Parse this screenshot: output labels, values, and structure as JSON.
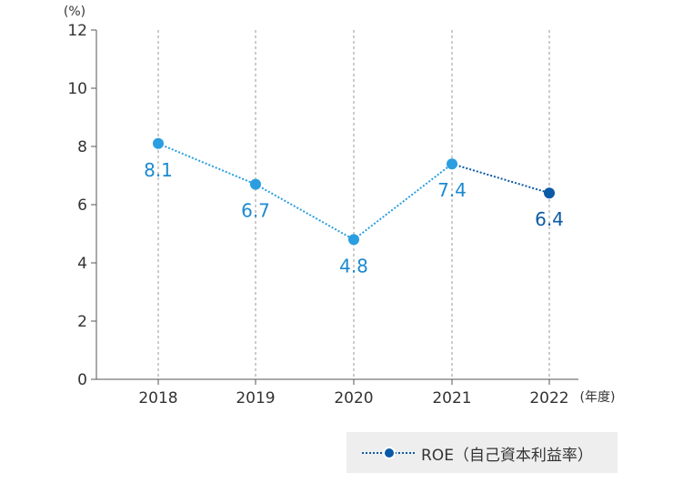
{
  "chart_data": {
    "type": "line",
    "title": "",
    "ylabel": "(%)",
    "xlabel": "(年度)",
    "ylim": [
      0,
      12
    ],
    "yticks": [
      0,
      2,
      4,
      6,
      8,
      10,
      12
    ],
    "categories": [
      "2018",
      "2019",
      "2020",
      "2021",
      "2022"
    ],
    "series": [
      {
        "name": "ROE（自己資本利益率）",
        "values": [
          8.1,
          6.7,
          4.8,
          7.4,
          6.4
        ],
        "labels": [
          "8.1",
          "6.7",
          "4.8",
          "7.4",
          "6.4"
        ],
        "color": "#2a9ee0",
        "highlight_color": "#0b5aa6",
        "line_style": "dotted"
      }
    ],
    "grid": "vertical dotted",
    "legend": "bottom-right"
  }
}
